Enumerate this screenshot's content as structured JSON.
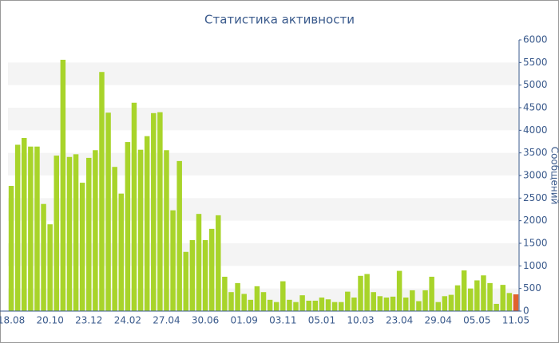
{
  "chart_data": {
    "type": "bar",
    "title": "Статистика активности",
    "y_label": "Сообщений",
    "categories": [
      "18.08",
      null,
      null,
      null,
      null,
      null,
      "20.10",
      null,
      null,
      null,
      null,
      null,
      "23.12",
      null,
      null,
      null,
      null,
      null,
      "24.02",
      null,
      null,
      null,
      null,
      null,
      "27.04",
      null,
      null,
      null,
      null,
      null,
      "30.06",
      null,
      null,
      null,
      null,
      null,
      "01.09",
      null,
      null,
      null,
      null,
      null,
      "03.11",
      null,
      null,
      null,
      null,
      null,
      "05.01",
      null,
      null,
      null,
      null,
      null,
      "10.03",
      null,
      null,
      null,
      null,
      null,
      "23.04",
      null,
      null,
      null,
      null,
      null,
      "29.04",
      null,
      null,
      null,
      null,
      null,
      "05.05",
      null,
      null,
      null,
      null,
      null,
      "11.05"
    ],
    "values": [
      2770,
      3680,
      3830,
      3640,
      3640,
      2370,
      1920,
      3440,
      5560,
      3410,
      3470,
      2840,
      3390,
      3560,
      5290,
      4390,
      3190,
      2600,
      3740,
      4610,
      3570,
      3870,
      4380,
      4400,
      3560,
      2230,
      3320,
      1310,
      1570,
      2150,
      1570,
      1820,
      2120,
      760,
      420,
      620,
      380,
      250,
      550,
      420,
      250,
      200,
      660,
      250,
      200,
      350,
      230,
      230,
      300,
      260,
      200,
      200,
      430,
      300,
      780,
      820,
      420,
      330,
      300,
      320,
      890,
      300,
      460,
      220,
      460,
      760,
      200,
      330,
      360,
      570,
      900,
      500,
      680,
      790,
      620,
      160,
      580,
      400,
      370
    ],
    "color": "#a8d42a",
    "last_color": "#e0622e",
    "ylim": [
      0,
      6000
    ],
    "yticks": [
      0,
      500,
      1000,
      1500,
      2000,
      2500,
      3000,
      3500,
      4000,
      4500,
      5000,
      5500,
      6000
    ],
    "grid": true
  }
}
